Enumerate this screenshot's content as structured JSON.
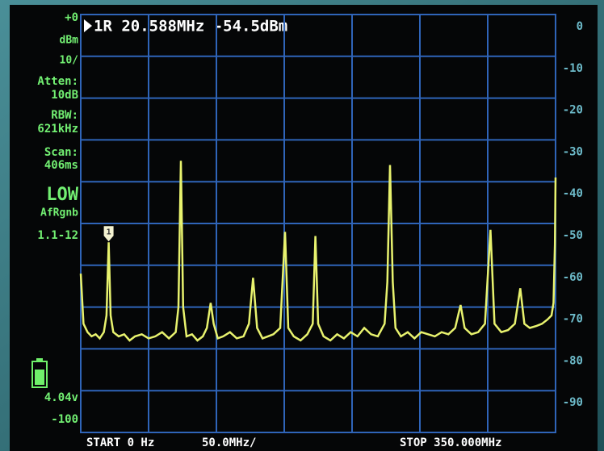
{
  "chart_data": {
    "type": "line",
    "marker_readout": "1R 20.588MHz -54.5dBm",
    "marker": {
      "label": "1",
      "x": 20.588,
      "y": -54.5
    },
    "side_labels": [
      "+0",
      "dBm",
      "10/",
      "Atten:",
      "10dB",
      "RBW:",
      "621kHz",
      "Scan:",
      "406ms",
      "LOW",
      "AfRgnb",
      "1.1-12",
      "4.04v",
      "-100"
    ],
    "start_label": "START 0 Hz",
    "scale_label": "50.0MHz/",
    "stop_label": "STOP 350.000MHz",
    "x": [
      0,
      2,
      5,
      8,
      11,
      14,
      17,
      19,
      20.6,
      22,
      24,
      28,
      32,
      36,
      40,
      45,
      50,
      55,
      60,
      65,
      70,
      72,
      73.8,
      75.5,
      78,
      82,
      86,
      90,
      93,
      95.8,
      98,
      101,
      105,
      110,
      115,
      120,
      124,
      127,
      130,
      134,
      138,
      142,
      147,
      150.6,
      153,
      157,
      162,
      167,
      171,
      173,
      175,
      179,
      184,
      189,
      194,
      199,
      204,
      209,
      214,
      219,
      224,
      226,
      228,
      230,
      232,
      236,
      241,
      246,
      251,
      256,
      261,
      266,
      271,
      276,
      280,
      283,
      288,
      293,
      298,
      302,
      305,
      310,
      315,
      320,
      324,
      327,
      331,
      336,
      340,
      344,
      347,
      348.5,
      349.5,
      350
    ],
    "values": [
      -62,
      -74,
      -76,
      -77,
      -76.5,
      -77.5,
      -76,
      -72,
      -54.5,
      -72,
      -76,
      -77,
      -76.5,
      -78,
      -77,
      -76.5,
      -77.5,
      -77,
      -76,
      -77.5,
      -76,
      -70,
      -35,
      -70,
      -77,
      -76.5,
      -78,
      -77,
      -75,
      -69,
      -74,
      -77.5,
      -77,
      -76,
      -77.5,
      -77,
      -74,
      -63,
      -75,
      -77.5,
      -77,
      -76.5,
      -75,
      -52,
      -75,
      -77,
      -78,
      -76.5,
      -74,
      -53,
      -74,
      -77,
      -78,
      -76.5,
      -77.5,
      -76,
      -77,
      -75,
      -76.5,
      -77,
      -74,
      -64,
      -36,
      -64,
      -75,
      -77,
      -76,
      -77.5,
      -76,
      -76.5,
      -77,
      -76,
      -76.5,
      -75,
      -69.5,
      -75,
      -76.5,
      -76,
      -74,
      -51.5,
      -74,
      -76,
      -75.5,
      -74,
      -65.5,
      -74,
      -75,
      -74.5,
      -74,
      -73,
      -72,
      -69,
      -55,
      -39
    ],
    "color": "#e8f26e",
    "xlim": [
      0,
      350
    ],
    "xticks": [
      0,
      50,
      100,
      150,
      200,
      250,
      300,
      350
    ],
    "ylim": [
      -100,
      0
    ],
    "yticks": [
      0,
      -10,
      -20,
      -30,
      -40,
      -50,
      -60,
      -70,
      -80,
      -90
    ],
    "grid": true
  }
}
